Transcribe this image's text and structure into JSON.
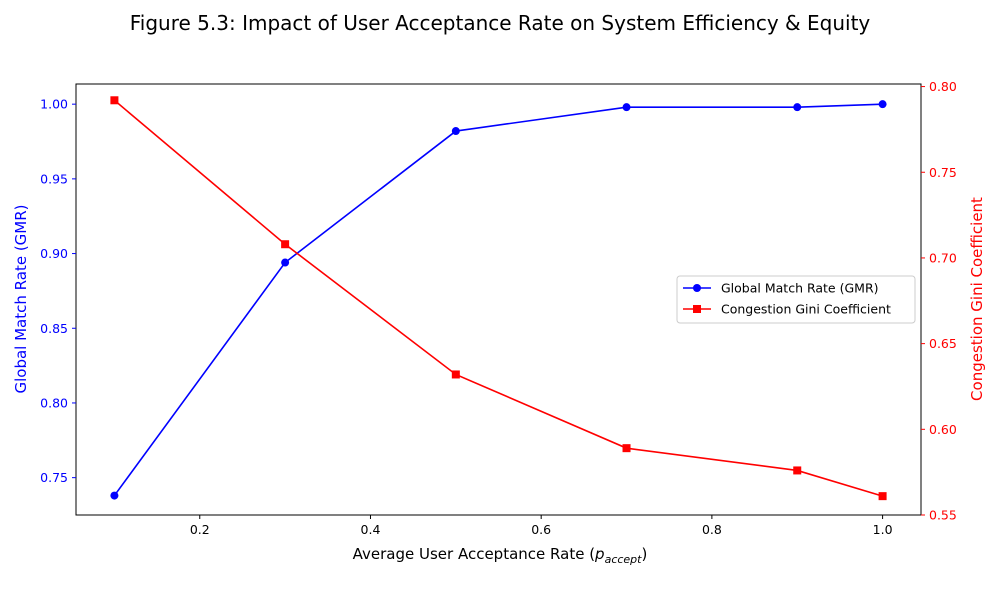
{
  "chart_data": {
    "type": "line",
    "title": "Figure 5.3: Impact of User Acceptance Rate on System Efficiency & Equity",
    "xlabel": "Average User Acceptance Rate (",
    "xlabel_math": "p",
    "xlabel_math_sub": "accept",
    "xlabel_suffix": ")",
    "ylabel_left": "Global Match Rate (GMR)",
    "ylabel_right": "Congestion Gini Coefficient",
    "x": [
      0.1,
      0.3,
      0.5,
      0.7,
      0.9,
      1.0
    ],
    "xlim": [
      0.055,
      1.045
    ],
    "x_ticks": [
      0.2,
      0.4,
      0.6,
      0.8,
      1.0
    ],
    "x_tick_labels": [
      "0.2",
      "0.4",
      "0.6",
      "0.8",
      "1.0"
    ],
    "ylim_left": [
      0.725,
      1.0135
    ],
    "y_left_ticks": [
      0.75,
      0.8,
      0.85,
      0.9,
      0.95,
      1.0
    ],
    "y_left_tick_labels": [
      "0.75",
      "0.80",
      "0.85",
      "0.90",
      "0.95",
      "1.00"
    ],
    "ylim_right": [
      0.55,
      0.8015
    ],
    "y_right_ticks": [
      0.55,
      0.6,
      0.65,
      0.7,
      0.75,
      0.8
    ],
    "y_right_tick_labels": [
      "0.55",
      "0.60",
      "0.65",
      "0.70",
      "0.75",
      "0.80"
    ],
    "series": [
      {
        "name": "Global Match Rate (GMR)",
        "axis": "left",
        "color": "#0000ff",
        "marker": "circle",
        "values": [
          0.738,
          0.894,
          0.982,
          0.998,
          0.998,
          1.0
        ]
      },
      {
        "name": "Congestion Gini Coefficient",
        "axis": "right",
        "color": "#ff0000",
        "marker": "square",
        "values": [
          0.792,
          0.708,
          0.632,
          0.589,
          0.576,
          0.561
        ]
      }
    ],
    "legend_position": "center-right",
    "grid": false
  }
}
